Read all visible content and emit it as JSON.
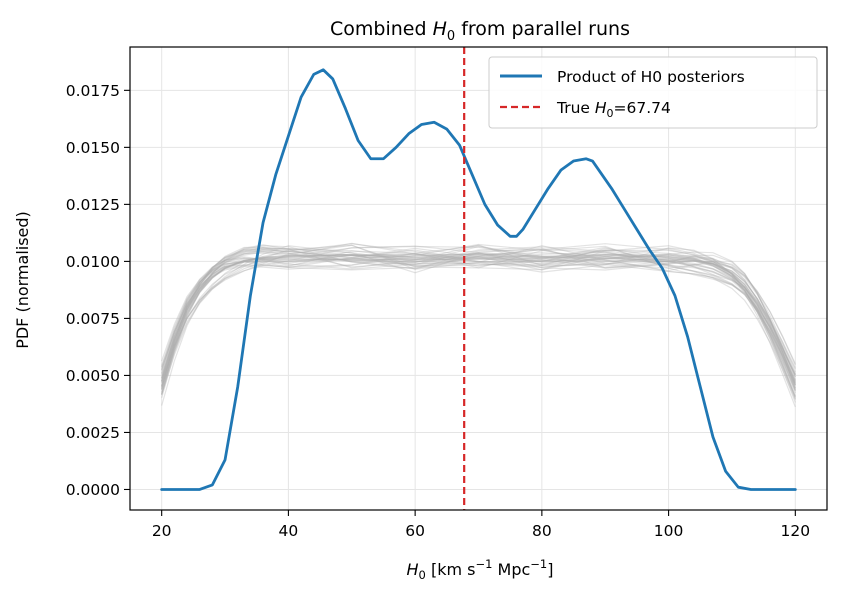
{
  "chart_data": {
    "type": "line",
    "title": "Combined H0 from parallel runs",
    "title_parts": {
      "pre": "Combined ",
      "symbol": "H",
      "sub": "0",
      "post": " from parallel runs"
    },
    "xlabel": "H0 [km s−1 Mpc−1]",
    "xlabel_parts": {
      "symbol": "H",
      "sub": "0",
      "unit_a": " [km s",
      "exp_a": "−1",
      "unit_b": " Mpc",
      "exp_b": "−1",
      "close": "]"
    },
    "ylabel": "PDF (normalised)",
    "xlim": [
      15,
      125
    ],
    "ylim": [
      -0.0009,
      0.0194
    ],
    "grid": true,
    "xticks": [
      20,
      40,
      60,
      80,
      100,
      120
    ],
    "xtick_labels": [
      "20",
      "40",
      "60",
      "80",
      "100",
      "120"
    ],
    "yticks": [
      0.0,
      0.0025,
      0.005,
      0.0075,
      0.01,
      0.0125,
      0.015,
      0.0175
    ],
    "ytick_labels": [
      "0.0000",
      "0.0025",
      "0.0050",
      "0.0075",
      "0.0100",
      "0.0125",
      "0.0150",
      "0.0175"
    ],
    "legend_position": "top-right",
    "series": [
      {
        "name": "Product of H0 posteriors",
        "legend_label": "Product of H0 posteriors",
        "color": "#1f77b4",
        "style": "solid",
        "x": [
          20,
          26,
          28,
          30,
          32,
          34,
          36,
          38,
          40,
          42,
          44,
          45.5,
          47,
          49,
          51,
          53,
          55,
          57,
          59,
          61,
          63,
          65,
          67,
          69,
          71,
          73,
          75,
          76,
          77,
          79,
          81,
          83,
          85,
          87,
          88,
          89,
          91,
          93,
          95,
          97,
          99,
          101,
          103,
          105,
          107,
          109,
          111,
          113,
          115,
          120
        ],
        "y": [
          0.0,
          0.0,
          0.0002,
          0.0013,
          0.0045,
          0.0085,
          0.0117,
          0.0138,
          0.0155,
          0.0172,
          0.0182,
          0.0184,
          0.018,
          0.0167,
          0.0153,
          0.0145,
          0.0145,
          0.015,
          0.0156,
          0.016,
          0.0161,
          0.0158,
          0.0151,
          0.0138,
          0.0125,
          0.0116,
          0.0111,
          0.0111,
          0.0114,
          0.0123,
          0.0132,
          0.014,
          0.0144,
          0.0145,
          0.0144,
          0.014,
          0.0132,
          0.0123,
          0.0114,
          0.0105,
          0.0097,
          0.0085,
          0.0067,
          0.0045,
          0.0023,
          0.0008,
          0.0001,
          0.0,
          0.0,
          0.0
        ]
      },
      {
        "name": "Individual run posteriors",
        "color": "#b0b0b0",
        "style": "faint",
        "count": 40,
        "x": [
          20,
          22,
          24,
          26,
          28,
          30,
          33,
          36,
          40,
          50,
          60,
          70,
          80,
          90,
          100,
          104,
          107,
          110,
          112,
          114,
          116,
          118,
          120
        ],
        "y": [
          0.0047,
          0.0065,
          0.0079,
          0.0088,
          0.0094,
          0.0098,
          0.0101,
          0.0102,
          0.0102,
          0.0102,
          0.0101,
          0.0102,
          0.0101,
          0.0102,
          0.0101,
          0.01,
          0.0098,
          0.0094,
          0.0089,
          0.0081,
          0.0071,
          0.0059,
          0.0046
        ]
      }
    ],
    "reference_line": {
      "x": 67.74,
      "color": "#d62728",
      "style": "dashed",
      "legend_label": "True H0=67.74",
      "legend_parts": {
        "pre": "True ",
        "symbol": "H",
        "sub": "0",
        "post": "=67.74"
      }
    }
  }
}
